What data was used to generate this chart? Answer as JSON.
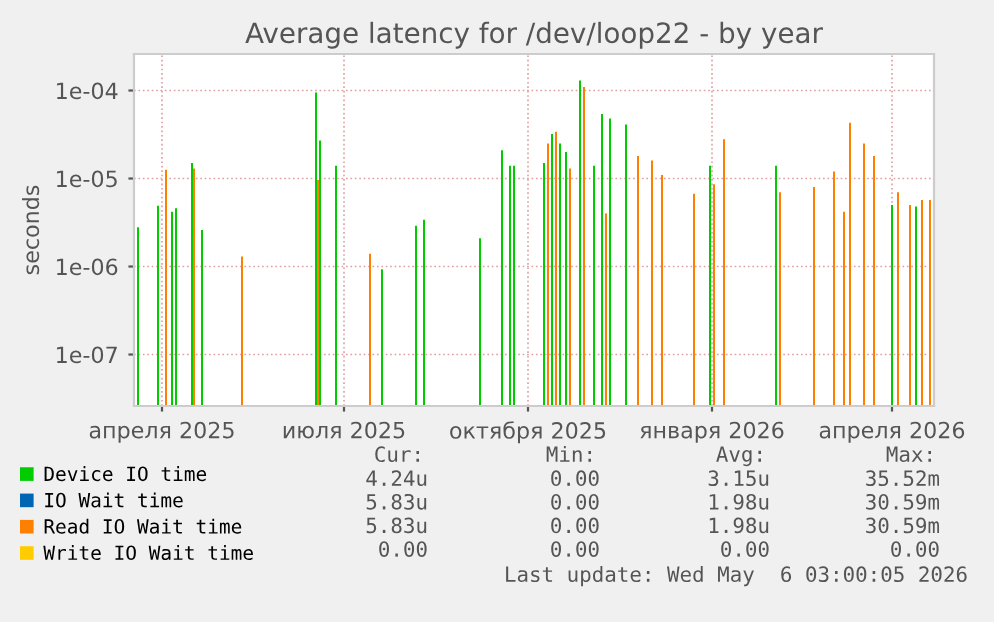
{
  "chart_data": {
    "type": "bar",
    "title": "Average latency for /dev/loop22 - by year",
    "ylabel": "seconds",
    "log": "y",
    "ylim": [
      2.6e-08,
      0.00026
    ],
    "yticks": [
      {
        "value": 1e-07,
        "label": "1e-07"
      },
      {
        "value": 1e-06,
        "label": "1e-06"
      },
      {
        "value": 1e-05,
        "label": "1e-05"
      },
      {
        "value": 0.0001,
        "label": "1e-04"
      }
    ],
    "xlim": [
      "2025-04-01",
      "2026-05-06"
    ],
    "xticks": [
      {
        "value": "2025-04-15",
        "label": "апреля 2025"
      },
      {
        "value": "2025-07-15",
        "label": "июля 2025"
      },
      {
        "value": "2025-10-15",
        "label": "октября 2025"
      },
      {
        "value": "2026-01-15",
        "label": "января 2026"
      },
      {
        "value": "2026-04-15",
        "label": "апреля 2026"
      }
    ],
    "grid": true,
    "legend": "bottom",
    "series": [
      {
        "name": "Device IO time",
        "color": "#00cc00",
        "x": [
          "2025-04-03",
          "2025-04-13",
          "2025-04-20",
          "2025-04-22",
          "2025-04-30",
          "2025-05-05",
          "2025-07-01",
          "2025-07-03",
          "2025-07-11",
          "2025-08-03",
          "2025-08-20",
          "2025-08-24",
          "2025-09-21",
          "2025-10-02",
          "2025-10-06",
          "2025-10-08",
          "2025-10-23",
          "2025-10-27",
          "2025-10-31",
          "2025-11-03",
          "2025-11-10",
          "2025-11-17",
          "2025-11-21",
          "2025-11-25",
          "2025-12-03",
          "2026-01-14",
          "2026-02-16",
          "2026-04-15",
          "2026-04-27"
        ],
        "values": [
          2.8e-06,
          4.9e-06,
          4.2e-06,
          4.6e-06,
          1.5e-05,
          2.6e-06,
          9.5e-05,
          2.7e-05,
          1.4e-05,
          9.3e-07,
          2.9e-06,
          3.4e-06,
          2.1e-06,
          2.1e-05,
          1.4e-05,
          1.4e-05,
          1.5e-05,
          3.2e-05,
          2.5e-05,
          2e-05,
          0.00013,
          1.4e-05,
          5.4e-05,
          4.8e-05,
          4.1e-05,
          1.4e-05,
          1.4e-05,
          5e-06,
          4.8e-06
        ]
      },
      {
        "name": "IO Wait time",
        "color": "#0066b3"
      },
      {
        "name": "Read IO Wait time",
        "color": "#ff8000",
        "x": [
          "2025-04-17",
          "2025-05-01",
          "2025-05-25",
          "2025-07-02",
          "2025-07-28",
          "2025-10-25",
          "2025-10-29",
          "2025-11-05",
          "2025-11-12",
          "2025-11-23",
          "2025-12-09",
          "2025-12-16",
          "2025-12-21",
          "2026-01-06",
          "2026-01-16",
          "2026-01-21",
          "2026-02-18",
          "2026-03-07",
          "2026-03-17",
          "2026-03-22",
          "2026-03-25",
          "2026-04-01",
          "2026-04-06",
          "2026-04-18",
          "2026-04-24",
          "2026-04-30",
          "2026-05-04"
        ],
        "values": [
          1.26e-05,
          1.3e-05,
          1.3e-06,
          9.6e-06,
          1.4e-06,
          2.5e-05,
          3.4e-05,
          1.3e-05,
          0.00011,
          4e-06,
          1.8e-05,
          1.6e-05,
          1.1e-05,
          6.7e-06,
          8.6e-06,
          2.8e-05,
          7e-06,
          8e-06,
          1.2e-05,
          4.2e-06,
          4.3e-05,
          2.5e-05,
          1.8e-05,
          7e-06,
          5e-06,
          5.7e-06,
          5.7e-06
        ]
      },
      {
        "name": "Write IO Wait time",
        "color": "#ffcc00"
      }
    ],
    "annotations": [
      "Cur:",
      "Min:",
      "Avg:",
      "Max:",
      "4.24u",
      "0.00",
      "3.15u",
      "35.52m",
      "5.83u",
      "0.00",
      "1.98u",
      "30.59m",
      "5.83u",
      "0.00",
      "1.98u",
      "30.59m",
      "0.00",
      "0.00",
      "0.00",
      "0.00",
      "Last update: Wed May  6 03:00:05 2026"
    ]
  }
}
